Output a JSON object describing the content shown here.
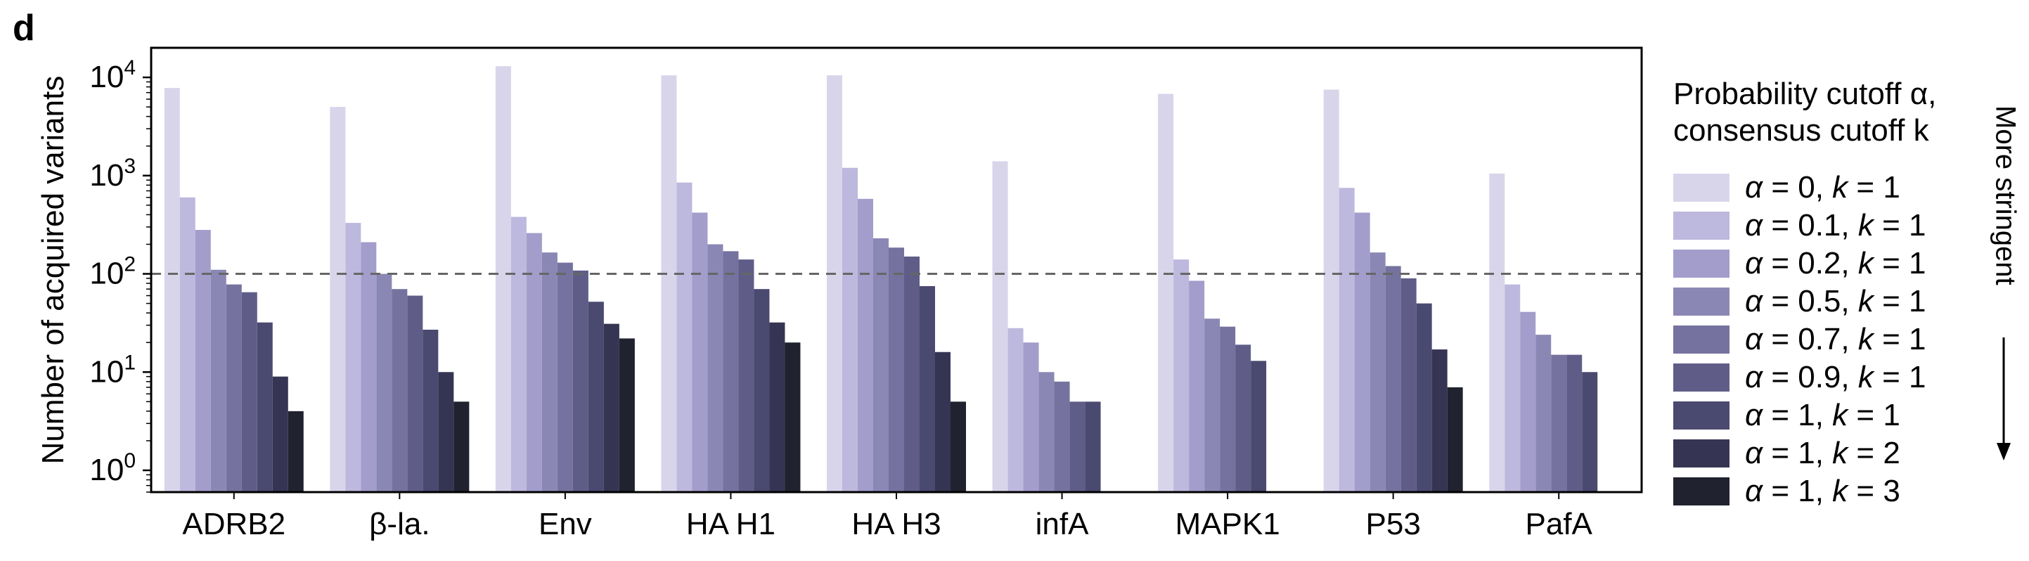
{
  "panel_label": "d",
  "legend": {
    "title_line1": "Probability cutoff α,",
    "title_line2": "consensus cutoff k",
    "items": [
      {
        "alpha": "0",
        "k": "1",
        "color": "#d8d5eb"
      },
      {
        "alpha": "0.1",
        "k": "1",
        "color": "#bdb8dd"
      },
      {
        "alpha": "0.2",
        "k": "1",
        "color": "#a29dcb"
      },
      {
        "alpha": "0.5",
        "k": "1",
        "color": "#8b87b5"
      },
      {
        "alpha": "0.7",
        "k": "1",
        "color": "#75729f"
      },
      {
        "alpha": "0.9",
        "k": "1",
        "color": "#5f5d88"
      },
      {
        "alpha": "1",
        "k": "1",
        "color": "#4a4970"
      },
      {
        "alpha": "1",
        "k": "2",
        "color": "#353553"
      },
      {
        "alpha": "1",
        "k": "3",
        "color": "#20222f"
      }
    ]
  },
  "arrow_label": "More stringent",
  "chart_data": {
    "type": "bar",
    "ylabel": "Number of acquired variants",
    "yscale": "log",
    "ylim": [
      0.6,
      20000
    ],
    "yticks": [
      1,
      10,
      100,
      1000,
      10000
    ],
    "ytick_labels": [
      {
        "base": "10",
        "exp": "0"
      },
      {
        "base": "10",
        "exp": "1"
      },
      {
        "base": "10",
        "exp": "2"
      },
      {
        "base": "10",
        "exp": "3"
      },
      {
        "base": "10",
        "exp": "4"
      }
    ],
    "threshold_line": 100,
    "categories": [
      "ADRB2",
      "β-la.",
      "Env",
      "HA H1",
      "HA H3",
      "infA",
      "MAPK1",
      "P53",
      "PafA"
    ],
    "series": [
      {
        "name": "α = 0, k = 1",
        "values": [
          7800,
          5000,
          13000,
          10500,
          10500,
          1400,
          6800,
          7500,
          1050
        ]
      },
      {
        "name": "α = 0.1, k = 1",
        "values": [
          600,
          330,
          380,
          850,
          1200,
          28,
          140,
          750,
          78
        ]
      },
      {
        "name": "α = 0.2, k = 1",
        "values": [
          280,
          210,
          260,
          420,
          580,
          20,
          85,
          420,
          41
        ]
      },
      {
        "name": "α = 0.5, k = 1",
        "values": [
          110,
          100,
          165,
          200,
          230,
          10,
          35,
          165,
          24
        ]
      },
      {
        "name": "α = 0.7, k = 1",
        "values": [
          78,
          70,
          130,
          170,
          185,
          8,
          29,
          120,
          15
        ]
      },
      {
        "name": "α = 0.9, k = 1",
        "values": [
          65,
          60,
          108,
          140,
          150,
          5,
          19,
          90,
          15
        ]
      },
      {
        "name": "α = 1, k = 1",
        "values": [
          32,
          27,
          52,
          70,
          75,
          5,
          13,
          50,
          10
        ]
      },
      {
        "name": "α = 1, k = 2",
        "values": [
          9,
          10,
          31,
          32,
          16,
          null,
          null,
          17,
          null
        ]
      },
      {
        "name": "α = 1, k = 3",
        "values": [
          4,
          5,
          22,
          20,
          5,
          null,
          null,
          7,
          null
        ]
      }
    ]
  }
}
